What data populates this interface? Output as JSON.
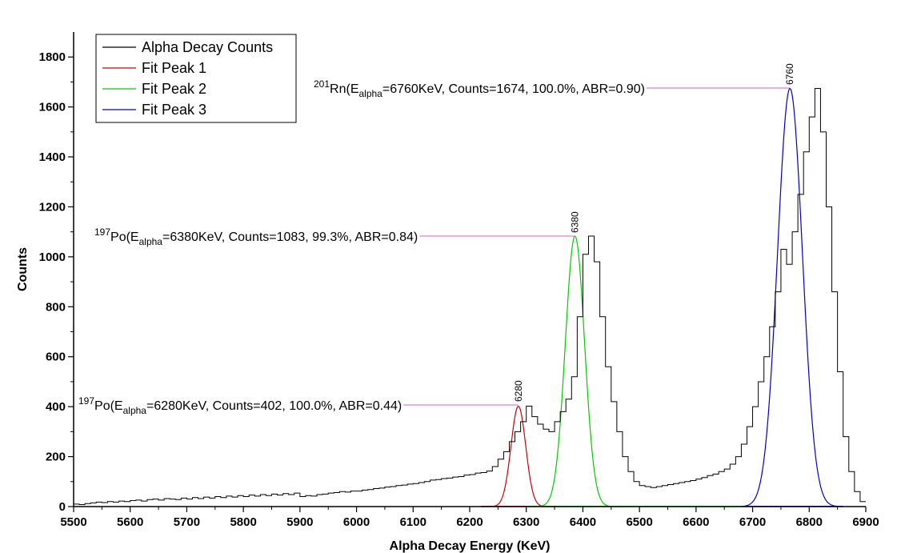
{
  "chart_data": {
    "type": "line",
    "xlabel": "Alpha Decay Energy (KeV)",
    "ylabel": "Counts",
    "xlim": [
      5500,
      6900
    ],
    "ylim": [
      0,
      1900
    ],
    "x_ticks": [
      "5500",
      "5600",
      "5700",
      "5800",
      "5900",
      "6000",
      "6100",
      "6200",
      "6300",
      "6400",
      "6500",
      "6600",
      "6700",
      "6800",
      "6900"
    ],
    "y_ticks": [
      "0",
      "200",
      "400",
      "600",
      "800",
      "1000",
      "1200",
      "1400",
      "1600",
      "1800"
    ],
    "legend": {
      "position": "top-left",
      "entries": [
        {
          "label": "Alpha Decay Counts",
          "color": "#000000"
        },
        {
          "label": "Fit Peak 1",
          "color": "#cc0000"
        },
        {
          "label": "Fit Peak 2",
          "color": "#00cc00"
        },
        {
          "label": "Fit Peak 3",
          "color": "#0000cc"
        }
      ]
    },
    "histogram": {
      "name": "Alpha Decay Counts",
      "bin_width": 10,
      "x_start": 5500,
      "counts": [
        10,
        8,
        12,
        15,
        18,
        16,
        20,
        18,
        22,
        20,
        24,
        26,
        22,
        28,
        30,
        26,
        32,
        30,
        28,
        34,
        30,
        36,
        32,
        38,
        34,
        40,
        36,
        42,
        38,
        44,
        40,
        46,
        42,
        48,
        44,
        50,
        46,
        52,
        48,
        54,
        40,
        44,
        42,
        48,
        50,
        54,
        56,
        60,
        58,
        62,
        62,
        66,
        68,
        72,
        74,
        78,
        80,
        84,
        86,
        90,
        92,
        96,
        100,
        106,
        108,
        112,
        114,
        118,
        120,
        126,
        128,
        134,
        136,
        142,
        160,
        190,
        220,
        260,
        300,
        340,
        402,
        360,
        330,
        310,
        300,
        340,
        380,
        430,
        520,
        760,
        1010,
        1083,
        980,
        760,
        560,
        420,
        300,
        200,
        140,
        100,
        84,
        80,
        76,
        80,
        84,
        88,
        92,
        96,
        100,
        104,
        110,
        116,
        124,
        130,
        140,
        150,
        170,
        200,
        250,
        320,
        400,
        500,
        600,
        720,
        860,
        1030,
        970,
        1100,
        1250,
        1420,
        1560,
        1674,
        1500,
        1200,
        860,
        540,
        280,
        140,
        60,
        20,
        10,
        5
      ],
      "description": "approximate step-histogram reconstruction read from the figure"
    },
    "fits": [
      {
        "name": "Fit Peak 1",
        "center": 6286,
        "amplitude": 402,
        "sigma": 13,
        "color": "#cc0000",
        "range": [
          6220,
          6350
        ]
      },
      {
        "name": "Fit Peak 2",
        "center": 6386,
        "amplitude": 1083,
        "sigma": 17,
        "color": "#00cc00",
        "range": [
          6300,
          6470
        ]
      },
      {
        "name": "Fit Peak 3",
        "center": 6766,
        "amplitude": 1674,
        "sigma": 22,
        "color": "#0000cc",
        "range": [
          6680,
          6860
        ]
      }
    ],
    "annotations": [
      {
        "peak_label": "6280",
        "peak_x": 6286,
        "peak_y": 402,
        "nuclide_mass": "197",
        "element": "Po",
        "e_prefix": "(E",
        "e_sub": "alpha",
        "rest": "=6280KeV, Counts=402, 100.0%, ABR=0.44)"
      },
      {
        "peak_label": "6380",
        "peak_x": 6386,
        "peak_y": 1083,
        "nuclide_mass": "197",
        "element": "Po",
        "e_prefix": "(E",
        "e_sub": "alpha",
        "rest": "=6380KeV, Counts=1083, 99.3%, ABR=0.84)"
      },
      {
        "peak_label": "6760",
        "peak_x": 6766,
        "peak_y": 1674,
        "nuclide_mass": "201",
        "element": "Rn",
        "e_prefix": "(E",
        "e_sub": "alpha",
        "rest": "=6760KeV, Counts=1674, 100.0%, ABR=0.90)"
      }
    ],
    "grid": false
  }
}
